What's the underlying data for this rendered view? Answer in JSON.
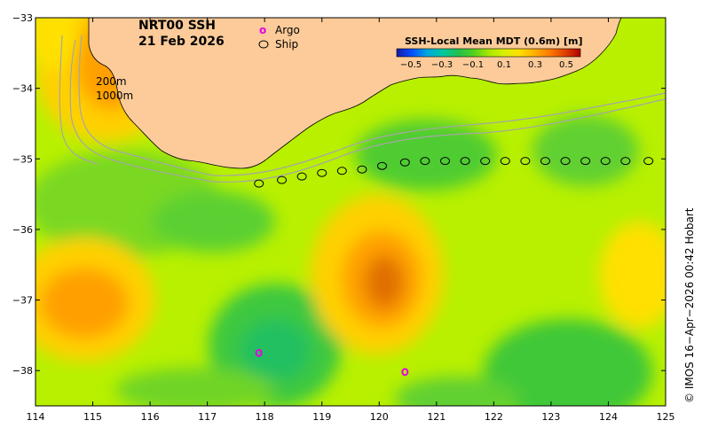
{
  "title_line1": "NRT00 SSH",
  "title_line2": "21 Feb 2026",
  "legend": {
    "argo_symbol": "o",
    "argo_label": "Argo",
    "ship_label": "Ship",
    "argo_color": "#e600e6"
  },
  "isobaths": {
    "shallow": "200m",
    "deep": "1000m"
  },
  "colorbar": {
    "title": "SSH-Local Mean MDT (0.6m) [m]",
    "ticks": [
      "−0.5",
      "−0.3",
      "−0.1",
      "0.1",
      "0.3",
      "0.5"
    ],
    "colors": [
      "#1a1aa8",
      "#0050ff",
      "#00a8e0",
      "#00c8a0",
      "#20c050",
      "#50d020",
      "#a8e600",
      "#d8f000",
      "#ffe000",
      "#ffb000",
      "#ff7a00",
      "#e04000",
      "#b00000"
    ]
  },
  "credit": "© IMOS 16−Apr−2026 00:42 Hobart",
  "axes": {
    "x_ticks": [
      "114",
      "115",
      "116",
      "117",
      "118",
      "119",
      "120",
      "121",
      "122",
      "123",
      "124",
      "125"
    ],
    "y_ticks": [
      "−33",
      "−34",
      "−35",
      "−36",
      "−37",
      "−38"
    ],
    "lon_range": [
      114,
      125
    ],
    "lat_range": [
      -38.5,
      -33
    ]
  },
  "colors": {
    "land": "#fccb99",
    "background": "#b8f000"
  },
  "ship_positions": [
    [
      117.9,
      -35.35
    ],
    [
      118.3,
      -35.3
    ],
    [
      118.65,
      -35.25
    ],
    [
      119.0,
      -35.2
    ],
    [
      119.35,
      -35.17
    ],
    [
      119.7,
      -35.15
    ],
    [
      120.05,
      -35.1
    ],
    [
      120.45,
      -35.05
    ],
    [
      120.8,
      -35.03
    ],
    [
      121.15,
      -35.03
    ],
    [
      121.5,
      -35.03
    ],
    [
      121.85,
      -35.03
    ],
    [
      122.2,
      -35.03
    ],
    [
      122.55,
      -35.03
    ],
    [
      122.9,
      -35.03
    ],
    [
      123.25,
      -35.03
    ],
    [
      123.6,
      -35.03
    ],
    [
      123.95,
      -35.03
    ],
    [
      124.3,
      -35.03
    ],
    [
      124.7,
      -35.03
    ]
  ],
  "argo_positions": [
    [
      117.9,
      -37.75
    ],
    [
      120.45,
      -38.02
    ]
  ]
}
